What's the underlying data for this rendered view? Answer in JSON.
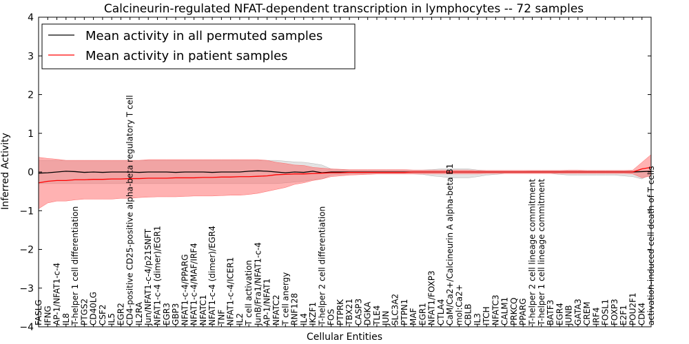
{
  "chart_data": {
    "type": "line",
    "title": "Calcineurin-regulated NFAT-dependent transcription in lymphocytes -- 72 samples",
    "xlabel": "Cellular Entities",
    "ylabel": "Inferred Activity",
    "ylim": [
      -4,
      4
    ],
    "yticks": [
      -4,
      -3,
      -2,
      -1,
      0,
      1,
      2,
      3,
      4
    ],
    "grid": false,
    "legend_position": "top-left",
    "categories": [
      "FASLG",
      "IFNG",
      "AP-1/NFAT1-c-4",
      "IL8",
      "T-helper 1 cell differentiation",
      "PTGS2",
      "CD40LG",
      "CSF2",
      "IL5",
      "EGR2",
      "CD4-positive CD25-positive alpha-beta regulatory T cell",
      "IL2RA",
      "Jun/NFAT1-c-4/p21SNFT",
      "NFAT1-c-4 (dimer)/EGR1",
      "EGR3",
      "GBP3",
      "NFAT1-c-4/PPARG",
      "NFAT1-c-4/MAF/IRF4",
      "NFATC1",
      "NFAT1-c-4 (dimer)/EGR4",
      "TNF",
      "NFAT1-c-4/ICER1",
      "IL2",
      "T cell activation",
      "JunB/Fra1/NFAT1-c-4",
      "AP-1/NFAT1",
      "NFATC2",
      "T cell anergy",
      "RNF128",
      "IL4",
      "IKZF1",
      "T-helper 2 cell differentiation",
      "FOS",
      "PTPRK",
      "TBX21",
      "CASP3",
      "DGKA",
      "TLE4",
      "JUN",
      "SLC3A2",
      "PTPN1",
      "MAF",
      "EGR1",
      "NFAT1/FOXP3",
      "CTLA4",
      "CaM/Ca2+/Calcineurin A alpha-beta B1",
      "mol:Ca2+",
      "CBLB",
      "IL3",
      "ITCH",
      "NFATC3",
      "CALM1",
      "PRKCQ",
      "PPARG",
      "T-helper 2 cell lineage commitment",
      "T-helper 1 cell lineage commitment",
      "BATF3",
      "EGR4",
      "JUNB",
      "GATA3",
      "CREM",
      "IRF4",
      "FOSL1",
      "FOXP3",
      "E2F1",
      "POU2F1",
      "CDK4",
      "activation-induced cell death of T cells"
    ],
    "series": [
      {
        "name": "Mean activity in all permuted samples",
        "color": "#000000",
        "values": [
          -0.03,
          -0.02,
          0.0,
          0.02,
          0.01,
          -0.01,
          0.0,
          -0.01,
          0.0,
          0.0,
          0.0,
          -0.01,
          0.0,
          0.0,
          0.0,
          -0.01,
          0.0,
          0.0,
          0.0,
          -0.01,
          0.0,
          0.0,
          0.0,
          0.02,
          0.03,
          0.02,
          0.0,
          -0.02,
          0.0,
          -0.01,
          0.02,
          -0.02,
          0.0,
          0.0,
          0.0,
          0.0,
          0.0,
          0.0,
          0.0,
          0.0,
          0.0,
          0.0,
          0.0,
          0.0,
          0.0,
          0.0,
          0.0,
          0.0,
          0.0,
          0.0,
          0.0,
          0.0,
          0.0,
          0.0,
          0.0,
          0.0,
          0.0,
          0.0,
          0.0,
          0.0,
          0.0,
          0.0,
          0.0,
          0.0,
          0.0,
          0.0,
          0.01,
          0.02
        ],
        "band_upper": [
          0.3,
          0.3,
          0.3,
          0.3,
          0.3,
          0.3,
          0.3,
          0.3,
          0.3,
          0.3,
          0.3,
          0.3,
          0.3,
          0.3,
          0.3,
          0.3,
          0.3,
          0.3,
          0.3,
          0.3,
          0.3,
          0.3,
          0.3,
          0.3,
          0.3,
          0.3,
          0.3,
          0.28,
          0.26,
          0.25,
          0.22,
          0.18,
          0.08,
          0.06,
          0.05,
          0.05,
          0.05,
          0.05,
          0.05,
          0.05,
          0.05,
          0.05,
          0.05,
          0.06,
          0.08,
          0.08,
          0.08,
          0.08,
          0.05,
          0.04,
          0.04,
          0.04,
          0.04,
          0.04,
          0.03,
          0.03,
          0.03,
          0.03,
          0.03,
          0.03,
          0.03,
          0.03,
          0.03,
          0.03,
          0.03,
          0.03,
          0.03,
          0.03
        ],
        "band_lower": [
          -0.3,
          -0.3,
          -0.3,
          -0.3,
          -0.3,
          -0.3,
          -0.3,
          -0.3,
          -0.3,
          -0.3,
          -0.3,
          -0.3,
          -0.3,
          -0.3,
          -0.3,
          -0.3,
          -0.3,
          -0.3,
          -0.3,
          -0.3,
          -0.3,
          -0.3,
          -0.3,
          -0.3,
          -0.3,
          -0.3,
          -0.3,
          -0.28,
          -0.26,
          -0.24,
          -0.2,
          -0.18,
          -0.08,
          -0.06,
          -0.05,
          -0.05,
          -0.05,
          -0.05,
          -0.05,
          -0.05,
          -0.05,
          -0.05,
          -0.06,
          -0.1,
          -0.12,
          -0.15,
          -0.15,
          -0.15,
          -0.12,
          -0.08,
          -0.06,
          -0.04,
          -0.04,
          -0.04,
          -0.04,
          -0.04,
          -0.04,
          -0.06,
          -0.08,
          -0.08,
          -0.08,
          -0.08,
          -0.08,
          -0.08,
          -0.1,
          -0.12,
          -0.18,
          -0.05
        ]
      },
      {
        "name": "Mean activity in patient samples",
        "color": "#ff0000",
        "values": [
          -0.28,
          -0.24,
          -0.22,
          -0.22,
          -0.2,
          -0.2,
          -0.19,
          -0.19,
          -0.18,
          -0.18,
          -0.17,
          -0.17,
          -0.16,
          -0.16,
          -0.16,
          -0.15,
          -0.15,
          -0.15,
          -0.14,
          -0.14,
          -0.13,
          -0.13,
          -0.12,
          -0.12,
          -0.11,
          -0.1,
          -0.07,
          -0.06,
          -0.05,
          -0.05,
          -0.04,
          -0.03,
          -0.02,
          -0.02,
          -0.01,
          -0.01,
          -0.01,
          -0.01,
          -0.01,
          -0.01,
          -0.01,
          0.0,
          0.0,
          0.0,
          0.0,
          0.0,
          0.0,
          0.0,
          0.0,
          0.0,
          0.0,
          0.0,
          0.0,
          0.0,
          0.0,
          0.0,
          0.0,
          0.0,
          0.0,
          0.0,
          0.0,
          0.0,
          0.0,
          0.0,
          0.0,
          0.0,
          0.08,
          0.12
        ],
        "band_upper": [
          0.38,
          0.35,
          0.33,
          0.3,
          0.3,
          0.3,
          0.3,
          0.3,
          0.3,
          0.3,
          0.3,
          0.3,
          0.32,
          0.32,
          0.32,
          0.32,
          0.32,
          0.32,
          0.32,
          0.32,
          0.32,
          0.32,
          0.32,
          0.32,
          0.32,
          0.3,
          0.25,
          0.22,
          0.18,
          0.17,
          0.12,
          0.1,
          0.08,
          0.07,
          0.06,
          0.06,
          0.06,
          0.06,
          0.06,
          0.06,
          0.06,
          0.05,
          0.05,
          0.05,
          0.05,
          0.05,
          0.05,
          0.05,
          0.04,
          0.04,
          0.04,
          0.04,
          0.04,
          0.04,
          0.04,
          0.04,
          0.04,
          0.04,
          0.05,
          0.05,
          0.04,
          0.04,
          0.04,
          0.04,
          0.04,
          0.05,
          0.25,
          0.45
        ],
        "band_lower": [
          -0.95,
          -0.8,
          -0.75,
          -0.75,
          -0.72,
          -0.7,
          -0.7,
          -0.7,
          -0.7,
          -0.68,
          -0.68,
          -0.66,
          -0.65,
          -0.64,
          -0.64,
          -0.64,
          -0.63,
          -0.62,
          -0.62,
          -0.62,
          -0.61,
          -0.6,
          -0.6,
          -0.58,
          -0.55,
          -0.5,
          -0.45,
          -0.4,
          -0.32,
          -0.28,
          -0.22,
          -0.18,
          -0.12,
          -0.1,
          -0.08,
          -0.07,
          -0.06,
          -0.05,
          -0.05,
          -0.05,
          -0.05,
          -0.05,
          -0.05,
          -0.05,
          -0.05,
          -0.05,
          -0.05,
          -0.05,
          -0.05,
          -0.04,
          -0.04,
          -0.04,
          -0.04,
          -0.04,
          -0.04,
          -0.04,
          -0.04,
          -0.04,
          -0.04,
          -0.04,
          -0.04,
          -0.04,
          -0.04,
          -0.04,
          -0.04,
          -0.05,
          -0.15,
          -0.1
        ]
      }
    ]
  }
}
